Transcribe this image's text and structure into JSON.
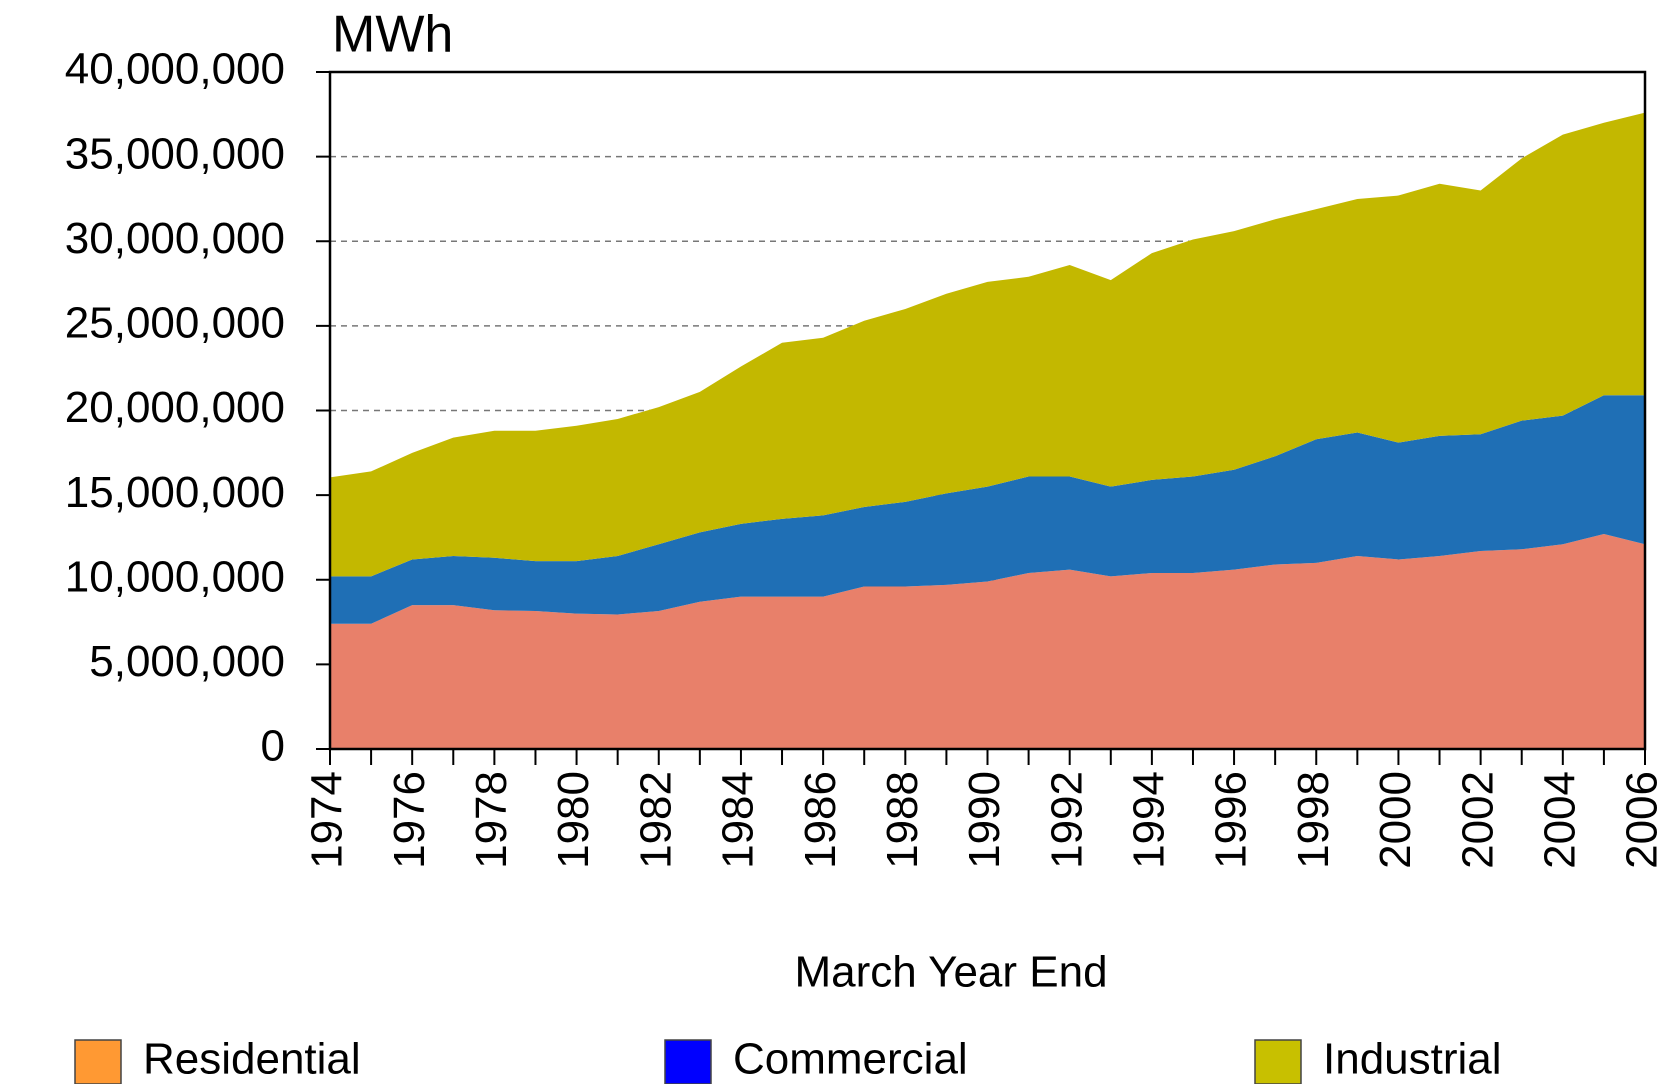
{
  "chart_data": {
    "type": "stacked-area",
    "title": "MWh",
    "xlabel": "March Year End",
    "x": [
      1974,
      1975,
      1976,
      1977,
      1978,
      1979,
      1980,
      1981,
      1982,
      1983,
      1984,
      1985,
      1986,
      1987,
      1988,
      1989,
      1990,
      1991,
      1992,
      1993,
      1994,
      1995,
      1996,
      1997,
      1998,
      1999,
      2000,
      2001,
      2002,
      2003,
      2004,
      2005,
      2006
    ],
    "xlim": [
      1974,
      2006
    ],
    "xticks": [
      1974,
      1976,
      1978,
      1980,
      1982,
      1984,
      1986,
      1988,
      1990,
      1992,
      1994,
      1996,
      1998,
      2000,
      2002,
      2004,
      2006
    ],
    "ylim": [
      0,
      40000000
    ],
    "yticks": [
      0,
      {
        "value": 5000000,
        "label": "5,000,000"
      },
      {
        "value": 10000000,
        "label": "10,000,000"
      },
      {
        "value": 15000000,
        "label": "15,000,000"
      },
      {
        "value": 20000000,
        "label": "20,000,000"
      },
      {
        "value": 25000000,
        "label": "25,000,000"
      },
      {
        "value": 30000000,
        "label": "30,000,000"
      },
      {
        "value": 35000000,
        "label": "35,000,000"
      },
      {
        "value": 40000000,
        "label": "40,000,000"
      }
    ],
    "grid": true,
    "legend": "bottom",
    "series": [
      {
        "name": "Residential",
        "color": "#e8806a",
        "legend_color": "#ff9933",
        "values": [
          7400000,
          7400000,
          8500000,
          8500000,
          8200000,
          8150000,
          8000000,
          7950000,
          8150000,
          8700000,
          9000000,
          9000000,
          9000000,
          9600000,
          9600000,
          9700000,
          9900000,
          10400000,
          10600000,
          10200000,
          10400000,
          10400000,
          10600000,
          10900000,
          11000000,
          11400000,
          11200000,
          11400000,
          11700000,
          11800000,
          12100000,
          12700000,
          12100000
        ]
      },
      {
        "name": "Commercial",
        "color": "#1f6fb5",
        "legend_color": "#0000ff",
        "values": [
          2800000,
          2800000,
          2700000,
          2900000,
          3100000,
          2950000,
          3100000,
          3450000,
          3950000,
          4100000,
          4300000,
          4600000,
          4800000,
          4700000,
          5000000,
          5400000,
          5600000,
          5700000,
          5500000,
          5300000,
          5500000,
          5700000,
          5900000,
          6400000,
          7300000,
          7300000,
          6900000,
          7100000,
          6900000,
          7600000,
          7600000,
          8200000,
          8800000
        ]
      },
      {
        "name": "Industrial",
        "color": "#c3b800",
        "legend_color": "#c8c000",
        "values": [
          5850000,
          6200000,
          6300000,
          7000000,
          7500000,
          7700000,
          8000000,
          8100000,
          8100000,
          8300000,
          9300000,
          10400000,
          10500000,
          11000000,
          11400000,
          11800000,
          12100000,
          11800000,
          12500000,
          12200000,
          13400000,
          14000000,
          14100000,
          14000000,
          13600000,
          13800000,
          14600000,
          14900000,
          14400000,
          15500000,
          16600000,
          16100000,
          16700000
        ]
      }
    ]
  }
}
